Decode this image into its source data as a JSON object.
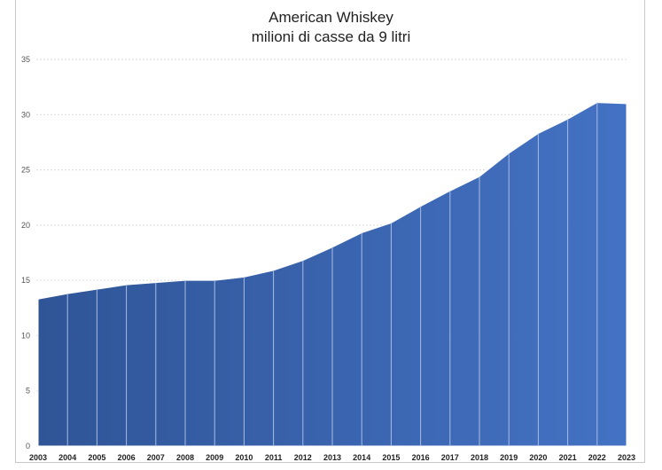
{
  "chart_data": {
    "type": "area",
    "title": "American Whiskey",
    "subtitle": "milioni di casse da 9 litri",
    "xlabel": "",
    "ylabel": "",
    "categories": [
      "2003",
      "2004",
      "2005",
      "2006",
      "2007",
      "2008",
      "2009",
      "2010",
      "2011",
      "2012",
      "2013",
      "2014",
      "2015",
      "2016",
      "2017",
      "2018",
      "2019",
      "2020",
      "2021",
      "2022",
      "2023"
    ],
    "series": [
      {
        "name": "American Whiskey",
        "values": [
          13.3,
          13.8,
          14.2,
          14.6,
          14.8,
          15.0,
          15.0,
          15.3,
          15.9,
          16.8,
          18.0,
          19.3,
          20.2,
          21.7,
          23.1,
          24.4,
          26.5,
          28.3,
          29.6,
          31.1,
          31.0
        ]
      }
    ],
    "ylim": [
      0,
      35
    ],
    "yticks": [
      0,
      5,
      10,
      15,
      20,
      25,
      30,
      35
    ],
    "grid": true,
    "legend": "none",
    "colors": {
      "fill_start": "#2f5597",
      "fill_end": "#4472c4",
      "divider": "#a9bde3",
      "grid": "#d9d9d9"
    }
  }
}
